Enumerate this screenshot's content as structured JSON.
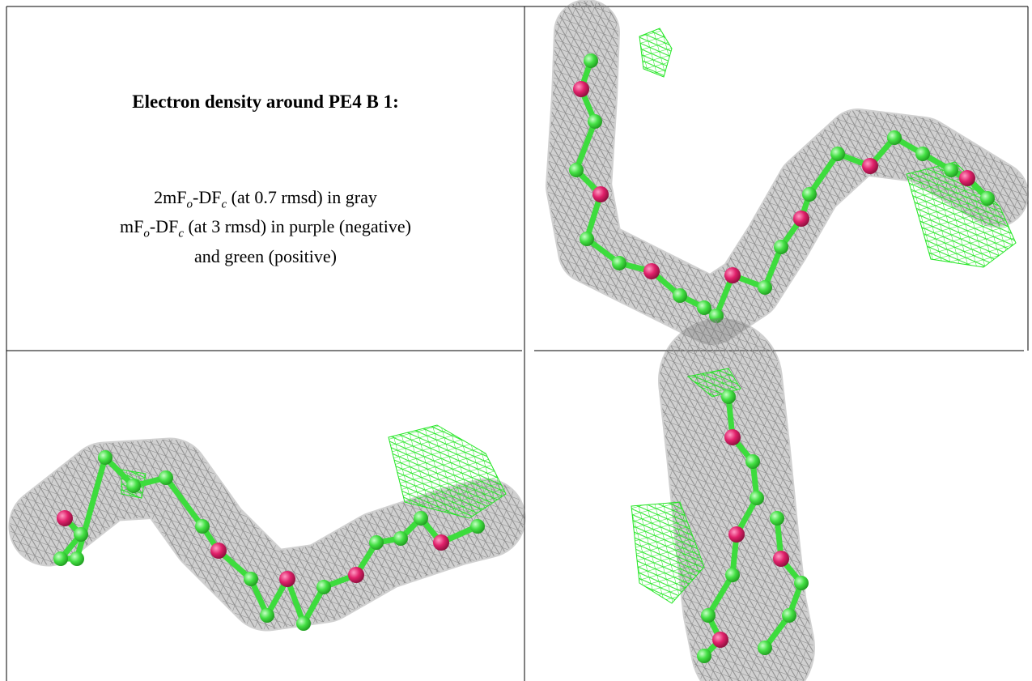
{
  "caption": {
    "title": "Electron density around PE4 B 1:",
    "lines": [
      [
        "2mF",
        "o",
        "-DF",
        "c",
        " (at 0.7 rmsd) in gray"
      ],
      [
        "mF",
        "o",
        "-DF",
        "c",
        " (at 3 rmsd) in purple (negative)"
      ],
      [
        "and green (positive)"
      ]
    ]
  }
}
